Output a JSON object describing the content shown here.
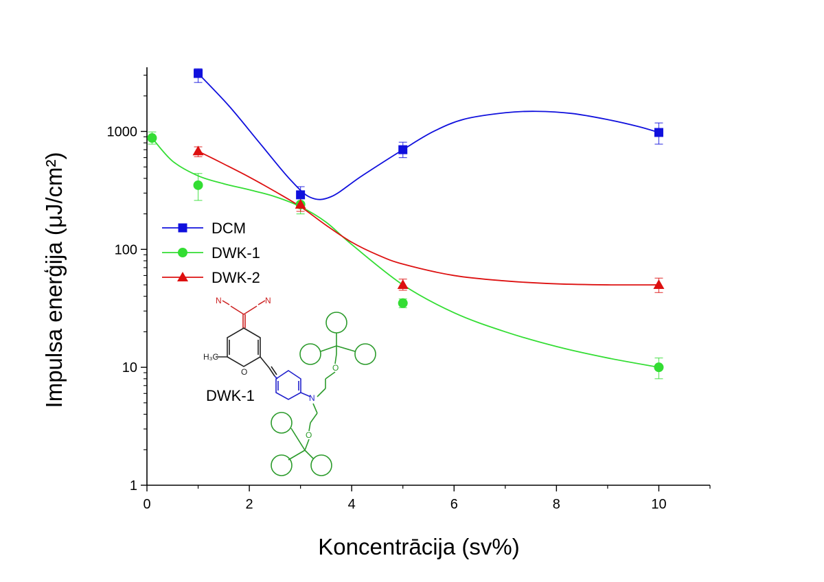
{
  "chart_data": {
    "type": "line",
    "xlabel": "Koncentrācija (sv%)",
    "ylabel": "Impulsa enerģija (μJ/cm²)",
    "xlim": [
      0,
      11
    ],
    "ylim": [
      1,
      3500
    ],
    "yscale": "log",
    "x_ticks": [
      "0",
      "2",
      "4",
      "6",
      "8",
      "10"
    ],
    "y_ticks": [
      "1",
      "10",
      "100",
      "1000"
    ],
    "grid": false,
    "legend_position": "middle-left",
    "series": [
      {
        "name": "DCM",
        "color": "#1010dd",
        "marker": "square",
        "x": [
          1,
          3,
          5,
          10
        ],
        "y": [
          3100,
          290,
          700,
          980
        ],
        "err_low": [
          2600,
          250,
          600,
          780
        ],
        "err_high": [
          3400,
          340,
          810,
          1180
        ],
        "curve_x": [
          1,
          1.6,
          2.2,
          2.8,
          3.2,
          3.6,
          4.2,
          5,
          5.6,
          6.2,
          7,
          7.6,
          8.3,
          9,
          9.6,
          10
        ],
        "curve_y": [
          3100,
          1650,
          800,
          390,
          275,
          280,
          420,
          700,
          1000,
          1270,
          1440,
          1480,
          1420,
          1260,
          1100,
          980
        ]
      },
      {
        "name": "DWK-1",
        "color": "#33dd33",
        "marker": "circle",
        "x": [
          0.1,
          1,
          3,
          5,
          10
        ],
        "y": [
          880,
          350,
          240,
          35,
          10
        ],
        "err_low": [
          780,
          260,
          200,
          32,
          8
        ],
        "err_high": [
          990,
          440,
          280,
          38,
          12
        ],
        "curve_x": [
          0.1,
          0.5,
          1,
          1.5,
          2,
          2.5,
          3,
          3.5,
          4,
          5,
          6,
          7,
          8,
          9,
          10
        ],
        "curve_y": [
          880,
          560,
          420,
          360,
          320,
          280,
          230,
          170,
          110,
          50,
          29,
          20,
          15,
          12,
          10
        ]
      },
      {
        "name": "DWK-2",
        "color": "#dd1010",
        "marker": "triangle",
        "x": [
          1,
          3,
          5,
          10
        ],
        "y": [
          680,
          240,
          50,
          50
        ],
        "err_low": [
          610,
          210,
          45,
          43
        ],
        "err_high": [
          740,
          270,
          56,
          57
        ],
        "curve_x": [
          1,
          1.5,
          2,
          2.5,
          3,
          3.5,
          4,
          4.5,
          5,
          6,
          7,
          8,
          9,
          10
        ],
        "curve_y": [
          680,
          530,
          410,
          310,
          230,
          160,
          115,
          90,
          75,
          60,
          54,
          51,
          50,
          50
        ]
      }
    ]
  },
  "molecule": {
    "label": "DWK-1",
    "atoms": {
      "nitrogen": "N",
      "oxygen": "O",
      "methyl": "H₃C"
    }
  }
}
